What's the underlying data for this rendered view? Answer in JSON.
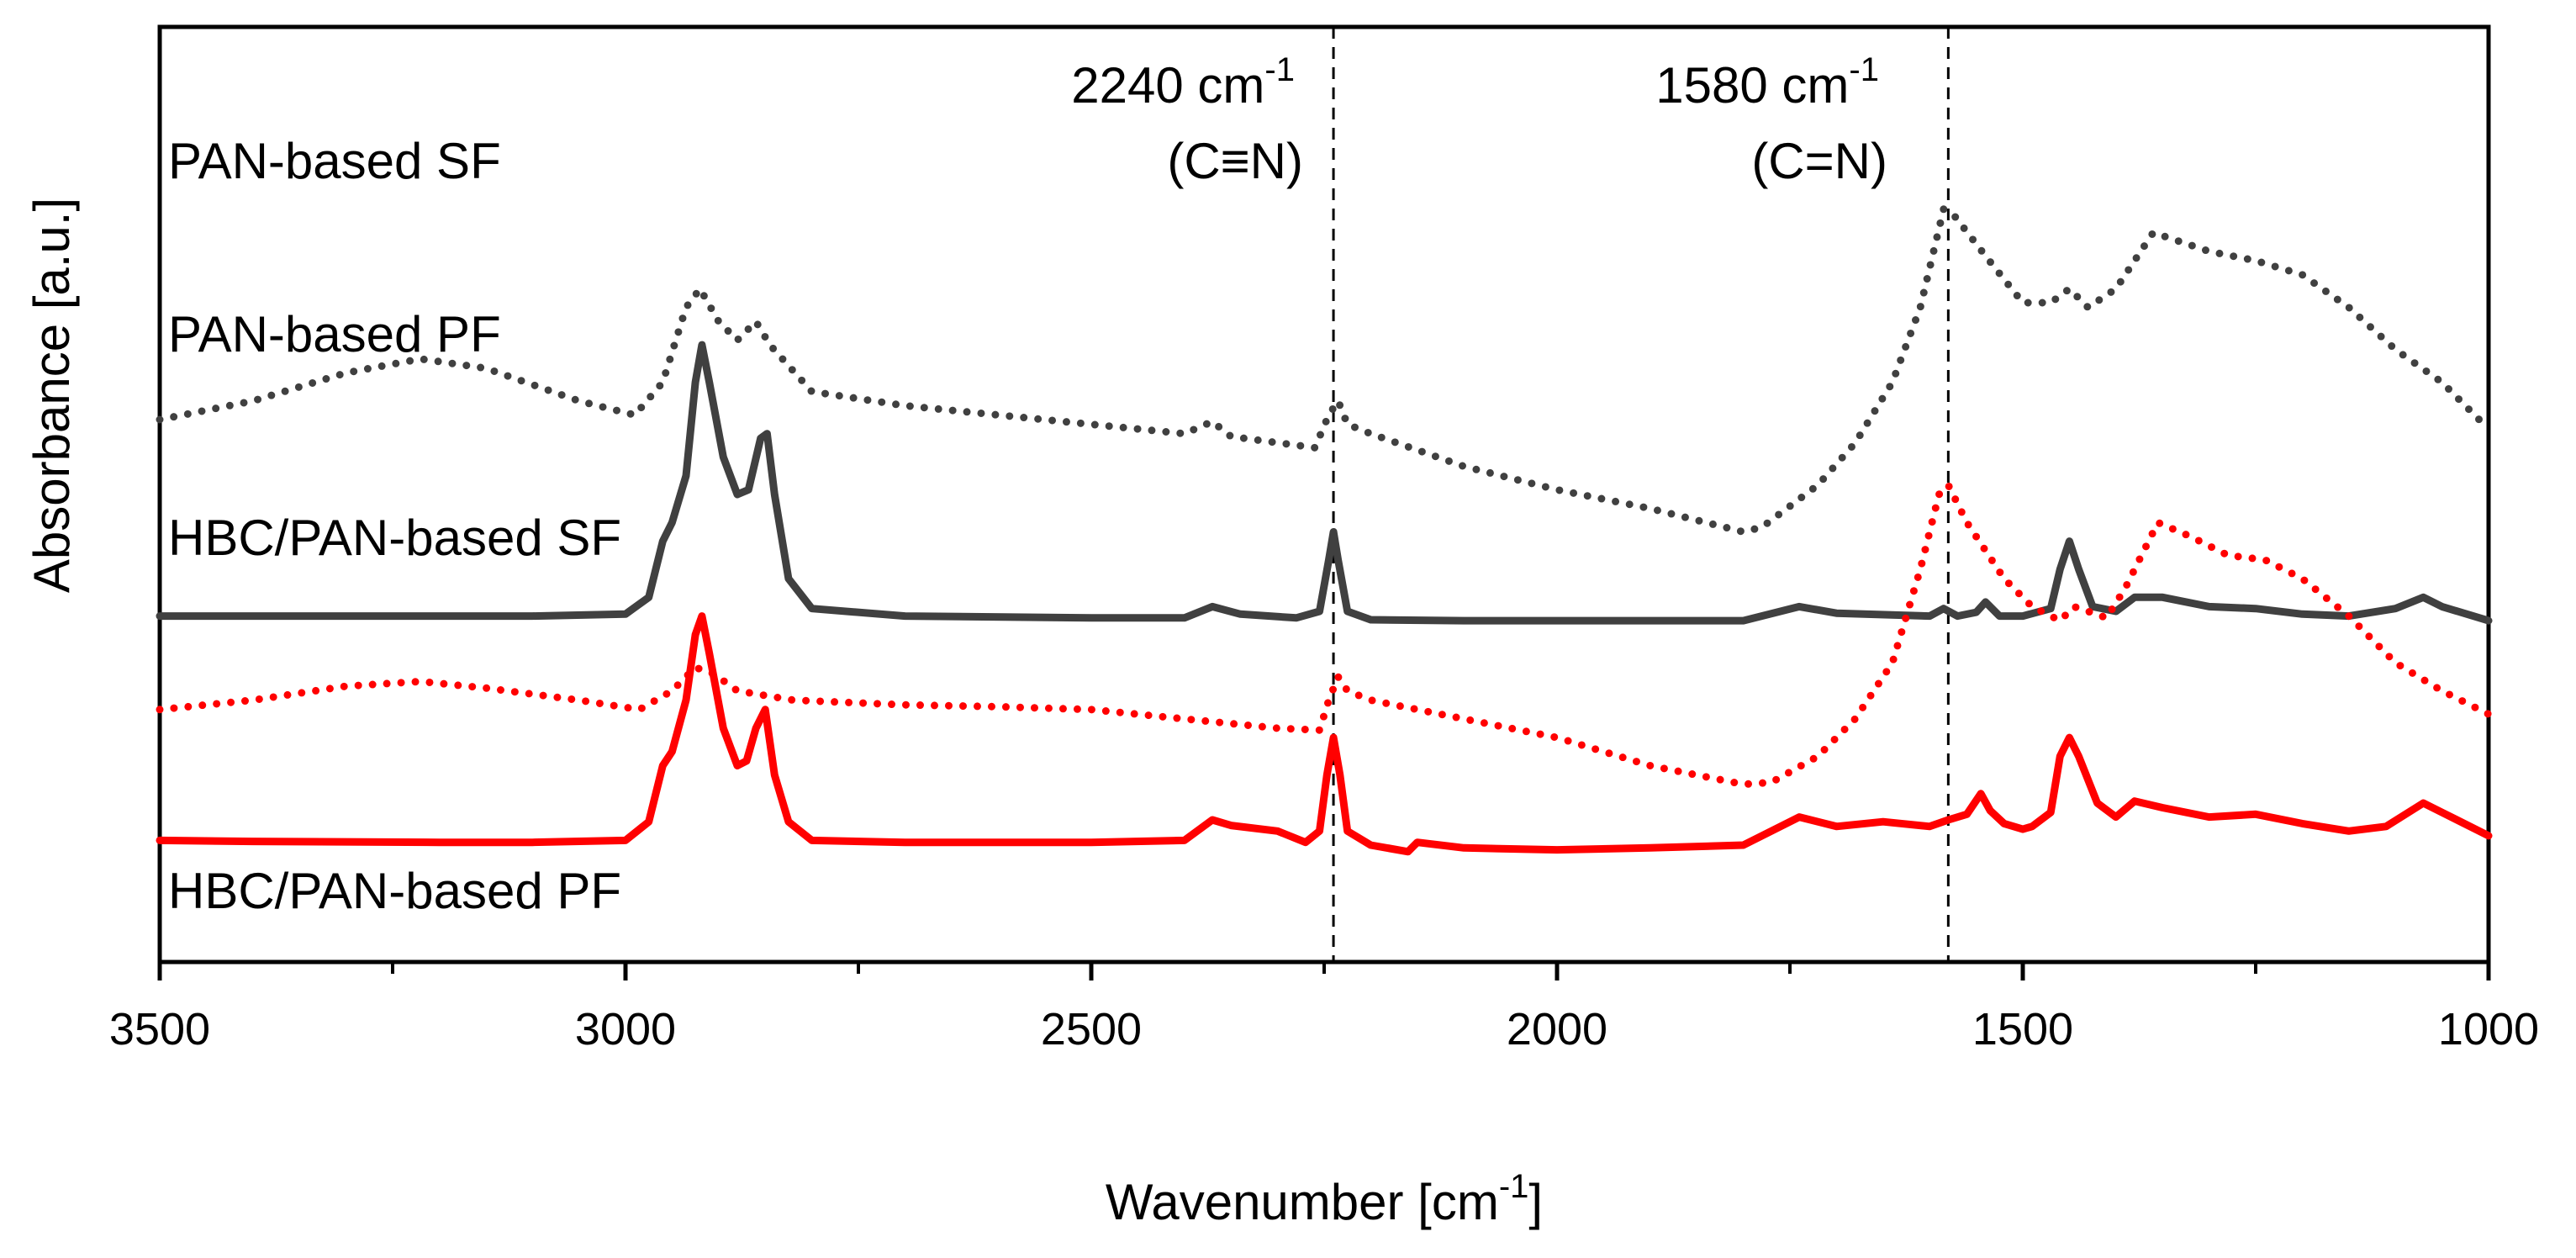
{
  "chart_data": {
    "type": "line",
    "xlabel": "Wavenumber [cm",
    "xlabel_sup": "-1",
    "xlabel_end": "]",
    "ylabel": "Absorbance [a.u.]",
    "xlim": [
      3500,
      1000
    ],
    "x_reversed": true,
    "y_ticks_shown": false,
    "xticks": [
      3500,
      3000,
      2500,
      2000,
      1500,
      1000
    ],
    "minor_xticks": [
      3250,
      2750,
      2250,
      1750,
      1250
    ],
    "xtick_labels": [
      "3500",
      "3000",
      "2500",
      "2000",
      "1500",
      "1000"
    ],
    "annotations": [
      {
        "x": 2240,
        "line1": "2240 cm",
        "sup": "-1",
        "line2": "(C≡N)"
      },
      {
        "x": 1580,
        "line1": "1580 cm",
        "sup": "-1",
        "line2": "(C=N)"
      }
    ],
    "series": [
      {
        "name": "PAN-based SF",
        "color": "#404040",
        "style": "dotted",
        "points": [
          [
            3500,
            0.58
          ],
          [
            3400,
            0.6
          ],
          [
            3300,
            0.63
          ],
          [
            3220,
            0.645
          ],
          [
            3150,
            0.635
          ],
          [
            3050,
            0.6
          ],
          [
            2990,
            0.585
          ],
          [
            2960,
            0.62
          ],
          [
            2935,
            0.7
          ],
          [
            2920,
            0.72
          ],
          [
            2900,
            0.685
          ],
          [
            2880,
            0.665
          ],
          [
            2860,
            0.685
          ],
          [
            2845,
            0.66
          ],
          [
            2800,
            0.61
          ],
          [
            2700,
            0.595
          ],
          [
            2600,
            0.585
          ],
          [
            2500,
            0.575
          ],
          [
            2400,
            0.565
          ],
          [
            2370,
            0.578
          ],
          [
            2350,
            0.562
          ],
          [
            2260,
            0.55
          ],
          [
            2245,
            0.585
          ],
          [
            2235,
            0.6
          ],
          [
            2225,
            0.575
          ],
          [
            2200,
            0.565
          ],
          [
            2100,
            0.53
          ],
          [
            2000,
            0.505
          ],
          [
            1900,
            0.485
          ],
          [
            1800,
            0.46
          ],
          [
            1780,
            0.465
          ],
          [
            1720,
            0.51
          ],
          [
            1680,
            0.555
          ],
          [
            1640,
            0.62
          ],
          [
            1610,
            0.7
          ],
          [
            1585,
            0.805
          ],
          [
            1575,
            0.8
          ],
          [
            1540,
            0.755
          ],
          [
            1500,
            0.705
          ],
          [
            1470,
            0.705
          ],
          [
            1450,
            0.72
          ],
          [
            1430,
            0.7
          ],
          [
            1400,
            0.72
          ],
          [
            1360,
            0.78
          ],
          [
            1300,
            0.76
          ],
          [
            1250,
            0.75
          ],
          [
            1200,
            0.735
          ],
          [
            1150,
            0.7
          ],
          [
            1100,
            0.655
          ],
          [
            1050,
            0.62
          ],
          [
            1000,
            0.57
          ]
        ]
      },
      {
        "name": "PAN-based PF",
        "color": "#404040",
        "style": "solid",
        "points": [
          [
            3500,
            0.37
          ],
          [
            3300,
            0.37
          ],
          [
            3100,
            0.37
          ],
          [
            3000,
            0.372
          ],
          [
            2975,
            0.39
          ],
          [
            2960,
            0.45
          ],
          [
            2950,
            0.47
          ],
          [
            2935,
            0.52
          ],
          [
            2925,
            0.62
          ],
          [
            2918,
            0.66
          ],
          [
            2910,
            0.62
          ],
          [
            2895,
            0.54
          ],
          [
            2880,
            0.5
          ],
          [
            2868,
            0.505
          ],
          [
            2855,
            0.56
          ],
          [
            2848,
            0.565
          ],
          [
            2840,
            0.5
          ],
          [
            2825,
            0.41
          ],
          [
            2800,
            0.378
          ],
          [
            2700,
            0.37
          ],
          [
            2500,
            0.368
          ],
          [
            2400,
            0.368
          ],
          [
            2370,
            0.38
          ],
          [
            2340,
            0.372
          ],
          [
            2280,
            0.368
          ],
          [
            2255,
            0.375
          ],
          [
            2245,
            0.43
          ],
          [
            2240,
            0.46
          ],
          [
            2235,
            0.43
          ],
          [
            2225,
            0.375
          ],
          [
            2200,
            0.366
          ],
          [
            2100,
            0.365
          ],
          [
            2000,
            0.365
          ],
          [
            1800,
            0.365
          ],
          [
            1740,
            0.38
          ],
          [
            1700,
            0.373
          ],
          [
            1600,
            0.37
          ],
          [
            1585,
            0.378
          ],
          [
            1570,
            0.37
          ],
          [
            1550,
            0.374
          ],
          [
            1540,
            0.385
          ],
          [
            1525,
            0.37
          ],
          [
            1500,
            0.37
          ],
          [
            1470,
            0.378
          ],
          [
            1460,
            0.42
          ],
          [
            1450,
            0.45
          ],
          [
            1440,
            0.42
          ],
          [
            1425,
            0.38
          ],
          [
            1400,
            0.375
          ],
          [
            1380,
            0.39
          ],
          [
            1350,
            0.39
          ],
          [
            1300,
            0.38
          ],
          [
            1250,
            0.378
          ],
          [
            1200,
            0.372
          ],
          [
            1150,
            0.37
          ],
          [
            1100,
            0.378
          ],
          [
            1070,
            0.39
          ],
          [
            1050,
            0.38
          ],
          [
            1000,
            0.365
          ]
        ]
      },
      {
        "name": "HBC/PAN-based SF",
        "color": "#ff0000",
        "style": "dotted",
        "points": [
          [
            3500,
            0.27
          ],
          [
            3400,
            0.28
          ],
          [
            3300,
            0.295
          ],
          [
            3220,
            0.3
          ],
          [
            3150,
            0.293
          ],
          [
            3050,
            0.28
          ],
          [
            2985,
            0.27
          ],
          [
            2950,
            0.29
          ],
          [
            2925,
            0.315
          ],
          [
            2905,
            0.308
          ],
          [
            2880,
            0.29
          ],
          [
            2820,
            0.28
          ],
          [
            2700,
            0.275
          ],
          [
            2600,
            0.273
          ],
          [
            2500,
            0.27
          ],
          [
            2400,
            0.26
          ],
          [
            2300,
            0.25
          ],
          [
            2255,
            0.248
          ],
          [
            2245,
            0.28
          ],
          [
            2235,
            0.305
          ],
          [
            2225,
            0.29
          ],
          [
            2200,
            0.28
          ],
          [
            2100,
            0.26
          ],
          [
            2000,
            0.24
          ],
          [
            1900,
            0.21
          ],
          [
            1800,
            0.19
          ],
          [
            1770,
            0.192
          ],
          [
            1720,
            0.22
          ],
          [
            1680,
            0.26
          ],
          [
            1640,
            0.32
          ],
          [
            1610,
            0.42
          ],
          [
            1590,
            0.5
          ],
          [
            1580,
            0.51
          ],
          [
            1560,
            0.47
          ],
          [
            1520,
            0.41
          ],
          [
            1490,
            0.38
          ],
          [
            1460,
            0.365
          ],
          [
            1445,
            0.38
          ],
          [
            1430,
            0.375
          ],
          [
            1410,
            0.368
          ],
          [
            1390,
            0.4
          ],
          [
            1355,
            0.47
          ],
          [
            1320,
            0.455
          ],
          [
            1280,
            0.435
          ],
          [
            1240,
            0.43
          ],
          [
            1200,
            0.41
          ],
          [
            1150,
            0.37
          ],
          [
            1100,
            0.32
          ],
          [
            1050,
            0.29
          ],
          [
            1000,
            0.265
          ]
        ]
      },
      {
        "name": "HBC/PAN-based PF",
        "color": "#ff0000",
        "style": "solid",
        "points": [
          [
            3500,
            0.13
          ],
          [
            3400,
            0.129
          ],
          [
            3200,
            0.128
          ],
          [
            3100,
            0.128
          ],
          [
            3000,
            0.13
          ],
          [
            2975,
            0.15
          ],
          [
            2960,
            0.21
          ],
          [
            2950,
            0.225
          ],
          [
            2935,
            0.28
          ],
          [
            2925,
            0.35
          ],
          [
            2918,
            0.37
          ],
          [
            2910,
            0.33
          ],
          [
            2895,
            0.25
          ],
          [
            2880,
            0.21
          ],
          [
            2870,
            0.215
          ],
          [
            2860,
            0.25
          ],
          [
            2850,
            0.27
          ],
          [
            2840,
            0.2
          ],
          [
            2825,
            0.15
          ],
          [
            2800,
            0.13
          ],
          [
            2700,
            0.128
          ],
          [
            2500,
            0.128
          ],
          [
            2400,
            0.13
          ],
          [
            2370,
            0.152
          ],
          [
            2350,
            0.146
          ],
          [
            2300,
            0.14
          ],
          [
            2270,
            0.128
          ],
          [
            2255,
            0.14
          ],
          [
            2247,
            0.2
          ],
          [
            2240,
            0.24
          ],
          [
            2233,
            0.2
          ],
          [
            2225,
            0.14
          ],
          [
            2200,
            0.125
          ],
          [
            2160,
            0.118
          ],
          [
            2150,
            0.128
          ],
          [
            2100,
            0.122
          ],
          [
            2000,
            0.12
          ],
          [
            1900,
            0.122
          ],
          [
            1800,
            0.125
          ],
          [
            1780,
            0.135
          ],
          [
            1740,
            0.155
          ],
          [
            1700,
            0.145
          ],
          [
            1650,
            0.15
          ],
          [
            1600,
            0.145
          ],
          [
            1580,
            0.152
          ],
          [
            1560,
            0.158
          ],
          [
            1545,
            0.18
          ],
          [
            1535,
            0.162
          ],
          [
            1520,
            0.148
          ],
          [
            1500,
            0.142
          ],
          [
            1490,
            0.145
          ],
          [
            1470,
            0.16
          ],
          [
            1460,
            0.22
          ],
          [
            1450,
            0.24
          ],
          [
            1440,
            0.22
          ],
          [
            1420,
            0.17
          ],
          [
            1400,
            0.155
          ],
          [
            1380,
            0.172
          ],
          [
            1350,
            0.165
          ],
          [
            1300,
            0.155
          ],
          [
            1250,
            0.158
          ],
          [
            1200,
            0.148
          ],
          [
            1150,
            0.14
          ],
          [
            1110,
            0.145
          ],
          [
            1070,
            0.17
          ],
          [
            1050,
            0.16
          ],
          [
            1000,
            0.135
          ]
        ]
      }
    ],
    "labels": [
      {
        "text": "PAN-based SF",
        "series": 0
      },
      {
        "text": "PAN-based PF",
        "series": 1
      },
      {
        "text": "HBC/PAN-based SF",
        "series": 2
      },
      {
        "text": "HBC/PAN-based PF",
        "series": 3
      }
    ]
  }
}
